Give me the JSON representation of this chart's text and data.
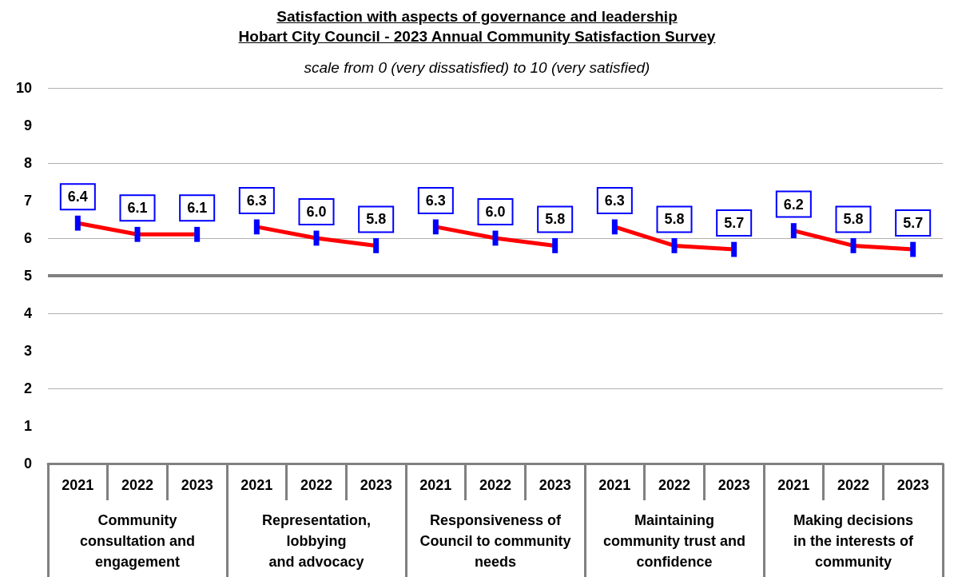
{
  "chart_data": {
    "type": "line",
    "title": "Satisfaction  with aspects of governance and leadership\nHobart City Council - 2023 Annual Community Satisfaction Survey",
    "subtitle": "scale from 0 (very dissatisfied) to 10 (very satisfied)",
    "categories": [
      "2021",
      "2022",
      "2023",
      "2021",
      "2022",
      "2023",
      "2021",
      "2022",
      "2023",
      "2021",
      "2022",
      "2023",
      "2021",
      "2022",
      "2023"
    ],
    "series": [
      {
        "color": "#ff0000",
        "values": [
          6.4,
          6.1,
          6.1,
          null,
          null,
          null,
          null,
          null,
          null,
          null,
          null,
          null,
          null,
          null,
          null
        ],
        "value_labels": [
          "6.4",
          "6.1",
          "6.1",
          null,
          null,
          null,
          null,
          null,
          null,
          null,
          null,
          null,
          null,
          null,
          null
        ],
        "errors": [
          0.2,
          0.2,
          0.2,
          null,
          null,
          null,
          null,
          null,
          null,
          null,
          null,
          null,
          null,
          null,
          null
        ]
      },
      {
        "color": "#ff0000",
        "values": [
          null,
          null,
          null,
          6.3,
          6.0,
          5.8,
          null,
          null,
          null,
          null,
          null,
          null,
          null,
          null,
          null
        ],
        "value_labels": [
          null,
          null,
          null,
          "6.3",
          "6.0",
          "5.8",
          null,
          null,
          null,
          null,
          null,
          null,
          null,
          null,
          null
        ],
        "errors": [
          null,
          null,
          null,
          0.2,
          0.2,
          0.2,
          null,
          null,
          null,
          null,
          null,
          null,
          null,
          null,
          null
        ]
      },
      {
        "color": "#ff0000",
        "values": [
          null,
          null,
          null,
          null,
          null,
          null,
          6.3,
          6.0,
          5.8,
          null,
          null,
          null,
          null,
          null,
          null
        ],
        "value_labels": [
          null,
          null,
          null,
          null,
          null,
          null,
          "6.3",
          "6.0",
          "5.8",
          null,
          null,
          null,
          null,
          null,
          null
        ],
        "errors": [
          null,
          null,
          null,
          null,
          null,
          null,
          0.2,
          0.2,
          0.2,
          null,
          null,
          null,
          null,
          null,
          null
        ]
      },
      {
        "color": "#ff0000",
        "values": [
          null,
          null,
          null,
          null,
          null,
          null,
          null,
          null,
          null,
          6.3,
          5.8,
          5.7,
          null,
          null,
          null
        ],
        "value_labels": [
          null,
          null,
          null,
          null,
          null,
          null,
          null,
          null,
          null,
          "6.3",
          "5.8",
          "5.7",
          null,
          null,
          null
        ],
        "errors": [
          null,
          null,
          null,
          null,
          null,
          null,
          null,
          null,
          null,
          0.2,
          0.2,
          0.2,
          null,
          null,
          null
        ]
      },
      {
        "color": "#ff0000",
        "values": [
          null,
          null,
          null,
          null,
          null,
          null,
          null,
          null,
          null,
          null,
          null,
          null,
          6.2,
          5.8,
          5.7
        ],
        "value_labels": [
          null,
          null,
          null,
          null,
          null,
          null,
          null,
          null,
          null,
          null,
          null,
          null,
          "6.2",
          "5.8",
          "5.7"
        ],
        "errors": [
          null,
          null,
          null,
          null,
          null,
          null,
          null,
          null,
          null,
          null,
          null,
          null,
          0.2,
          0.2,
          0.2
        ]
      }
    ],
    "annotations": [
      "Community\nconsultation and\nengagement",
      "Representation,\nlobbying\nand advocacy",
      "Responsiveness of\nCouncil to community\nneeds",
      "Maintaining\ncommunity trust and\nconfidence",
      "Making decisions\nin the interests of\ncommunity"
    ],
    "ylim": [
      0,
      10
    ],
    "yticks": [
      0,
      1,
      2,
      3,
      4,
      5,
      6,
      7,
      8,
      9,
      10
    ],
    "ref_lines": [
      {
        "axis": "y",
        "value": 5,
        "color": "#808080"
      }
    ],
    "grid": "y",
    "line_style": "solid"
  }
}
